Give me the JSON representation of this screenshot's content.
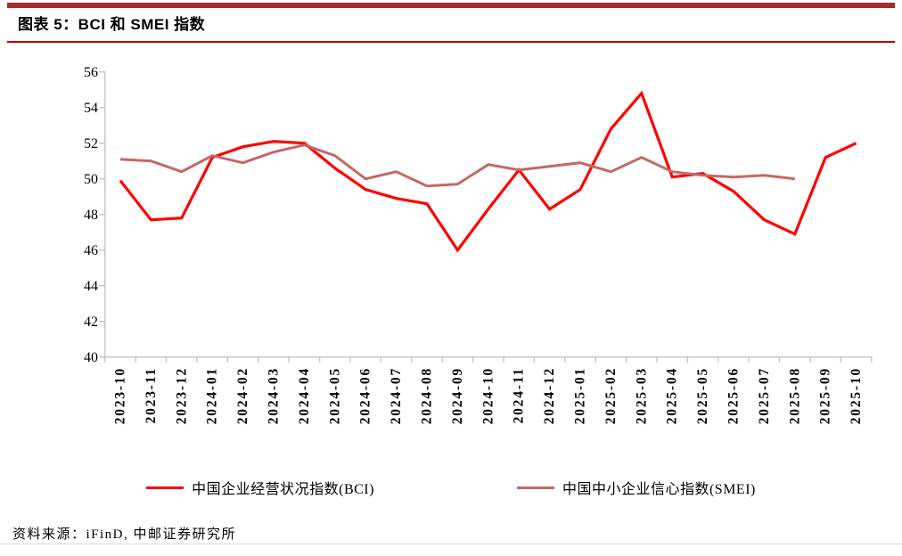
{
  "header": {
    "title": "图表 5：BCI 和 SMEI 指数"
  },
  "chart_data": {
    "type": "line",
    "title": "BCI 和 SMEI 指数",
    "categories": [
      "2023-10",
      "2023-11",
      "2023-12",
      "2024-01",
      "2024-02",
      "2024-03",
      "2024-04",
      "2024-05",
      "2024-06",
      "2024-07",
      "2024-08",
      "2024-09",
      "2024-10",
      "2024-11",
      "2024-12",
      "2025-01",
      "2025-02",
      "2025-03",
      "2025-04",
      "2025-05",
      "2025-06",
      "2025-07",
      "2025-08",
      "2025-09",
      "2025-10"
    ],
    "series": [
      {
        "name": "中国企业经营状况指数(BCI)",
        "color": "#FF0000",
        "values": [
          49.9,
          47.7,
          47.8,
          51.2,
          51.8,
          52.1,
          52.0,
          50.6,
          49.4,
          48.9,
          48.6,
          46.0,
          48.3,
          50.5,
          48.3,
          49.4,
          52.8,
          54.8,
          50.1,
          50.3,
          49.3,
          47.7,
          46.9,
          51.2,
          52.0
        ]
      },
      {
        "name": "中国中小企业信心指数(SMEI)",
        "color": "#C36964",
        "values": [
          51.1,
          51.0,
          50.4,
          51.3,
          50.9,
          51.5,
          51.9,
          51.3,
          50.0,
          50.4,
          49.6,
          49.7,
          50.8,
          50.5,
          50.7,
          50.9,
          50.4,
          51.2,
          50.4,
          50.2,
          50.1,
          50.2,
          50.0,
          null,
          null
        ]
      }
    ],
    "ylim": [
      40,
      56
    ],
    "ytick_step": 2,
    "ytick_labels": [
      "40",
      "42",
      "44",
      "46",
      "48",
      "50",
      "52",
      "54",
      "56"
    ],
    "grid": false,
    "legend_position": "bottom"
  },
  "footer": {
    "source": "资料来源：iFinD, 中邮证券研究所"
  },
  "colors": {
    "accent_bar": "#A7282D",
    "title_rule": "#C00000",
    "axis": "#C4C4C4",
    "bottom_rule": "#D8D8D8",
    "bci_red": "#FF0000",
    "smei_muted_red": "#C36964"
  }
}
